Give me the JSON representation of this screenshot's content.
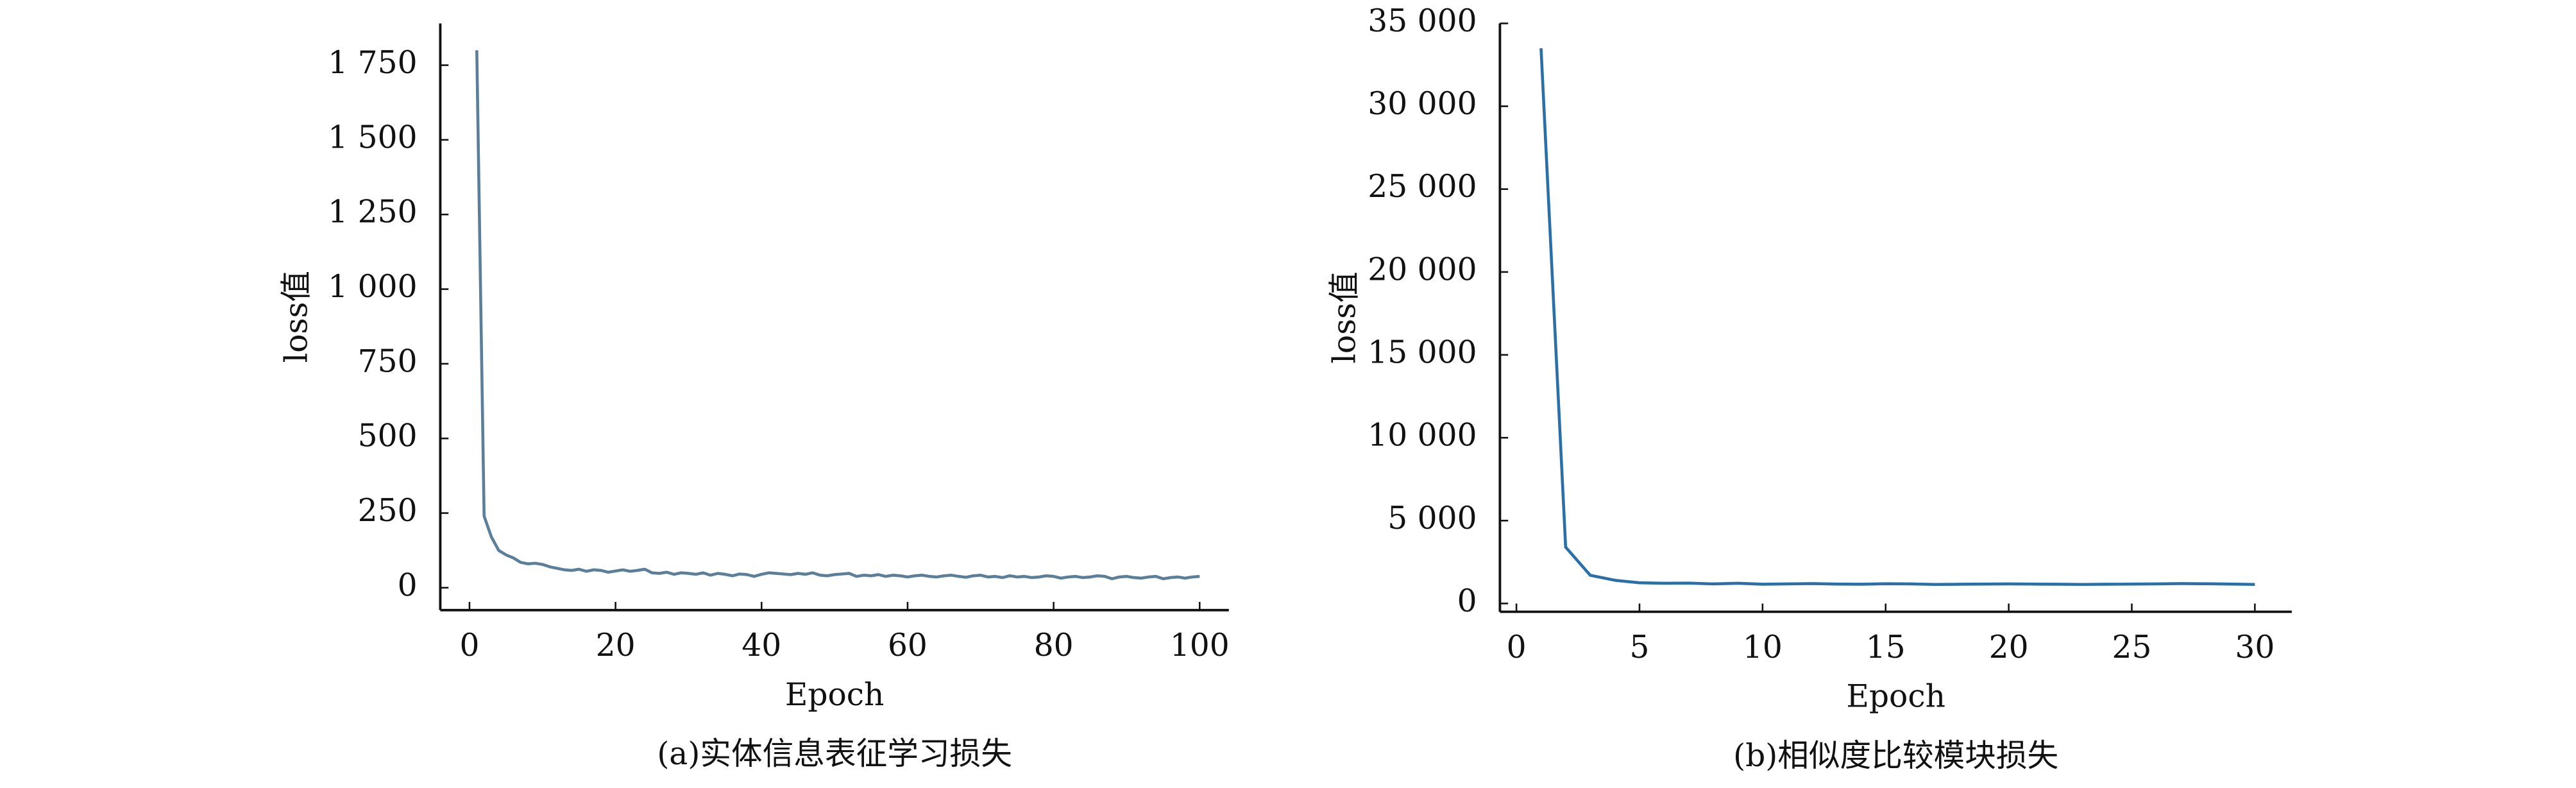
{
  "chart_data": [
    {
      "type": "line",
      "caption": "(a)实体信息表征学习损失",
      "xlabel": "Epoch",
      "ylabel": "loss值",
      "color": "#5b7f9a",
      "x": [
        1,
        2,
        3,
        4,
        5,
        6,
        7,
        8,
        9,
        10,
        11,
        12,
        13,
        14,
        15,
        16,
        17,
        18,
        19,
        20,
        21,
        22,
        23,
        24,
        25,
        26,
        27,
        28,
        29,
        30,
        31,
        32,
        33,
        34,
        35,
        36,
        37,
        38,
        39,
        40,
        41,
        42,
        43,
        44,
        45,
        46,
        47,
        48,
        49,
        50,
        51,
        52,
        53,
        54,
        55,
        56,
        57,
        58,
        59,
        60,
        61,
        62,
        63,
        64,
        65,
        66,
        67,
        68,
        69,
        70,
        71,
        72,
        73,
        74,
        75,
        76,
        77,
        78,
        79,
        80,
        81,
        82,
        83,
        84,
        85,
        86,
        87,
        88,
        89,
        90,
        91,
        92,
        93,
        94,
        95,
        96,
        97,
        98,
        99,
        100
      ],
      "values": [
        1800,
        240,
        170,
        125,
        110,
        100,
        85,
        80,
        82,
        78,
        70,
        65,
        60,
        58,
        62,
        55,
        60,
        58,
        52,
        56,
        60,
        55,
        58,
        62,
        50,
        48,
        52,
        45,
        50,
        48,
        45,
        50,
        42,
        48,
        45,
        40,
        46,
        44,
        38,
        45,
        50,
        48,
        46,
        44,
        48,
        45,
        50,
        42,
        40,
        44,
        46,
        48,
        38,
        42,
        40,
        44,
        38,
        42,
        40,
        36,
        40,
        42,
        38,
        36,
        40,
        42,
        38,
        35,
        40,
        42,
        36,
        38,
        34,
        40,
        36,
        38,
        34,
        36,
        40,
        38,
        32,
        36,
        38,
        34,
        36,
        40,
        38,
        30,
        36,
        38,
        34,
        32,
        36,
        38,
        30,
        34,
        36,
        32,
        36,
        38
      ],
      "xlim": [
        -4,
        104
      ],
      "ylim": [
        -75,
        1890
      ],
      "xticks": [
        0,
        20,
        40,
        60,
        80,
        100
      ],
      "yticks": [
        0,
        250,
        500,
        750,
        {
          "value": 1000,
          "label": "1 000"
        },
        {
          "value": 1250,
          "label": "1 250"
        },
        {
          "value": 1500,
          "label": "1 500"
        },
        {
          "value": 1750,
          "label": "1 750"
        }
      ]
    },
    {
      "type": "line",
      "caption": "(b)相似度比较模块损失",
      "xlabel": "Epoch",
      "ylabel": "loss值",
      "color": "#2a6fa8",
      "x": [
        1,
        2,
        3,
        4,
        5,
        6,
        7,
        8,
        9,
        10,
        11,
        12,
        13,
        14,
        15,
        16,
        17,
        18,
        19,
        20,
        21,
        22,
        23,
        24,
        25,
        26,
        27,
        28,
        29,
        30
      ],
      "values": [
        33500,
        3400,
        1700,
        1400,
        1250,
        1220,
        1230,
        1180,
        1220,
        1160,
        1180,
        1200,
        1170,
        1160,
        1190,
        1180,
        1150,
        1160,
        1170,
        1180,
        1170,
        1160,
        1150,
        1160,
        1170,
        1180,
        1200,
        1190,
        1170,
        1150
      ],
      "xlim": [
        -0.67,
        31.5
      ],
      "ylim": [
        -500,
        35000
      ],
      "xticks": [
        0,
        5,
        10,
        15,
        20,
        25,
        30
      ],
      "yticks": [
        0,
        {
          "value": 5000,
          "label": "5 000"
        },
        {
          "value": 10000,
          "label": "10 000"
        },
        {
          "value": 15000,
          "label": "15 000"
        },
        {
          "value": 20000,
          "label": "20 000"
        },
        {
          "value": 25000,
          "label": "25 000"
        },
        {
          "value": 30000,
          "label": "30 000"
        },
        {
          "value": 35000,
          "label": "35 000"
        }
      ]
    }
  ]
}
